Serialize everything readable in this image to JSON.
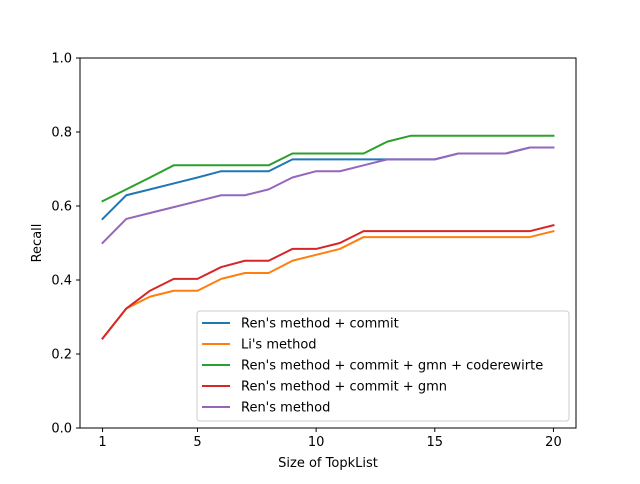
{
  "chart_data": {
    "type": "line",
    "title": "",
    "xlabel": "Size of TopkList",
    "ylabel": "Recall",
    "xlim": [
      0.05,
      20.95
    ],
    "ylim": [
      0.0,
      1.0
    ],
    "xticks": [
      1,
      5,
      10,
      15,
      20
    ],
    "yticks": [
      0.0,
      0.2,
      0.4,
      0.6,
      0.8,
      1.0
    ],
    "xtick_labels": [
      "1",
      "5",
      "10",
      "15",
      "20"
    ],
    "ytick_labels": [
      "0.0",
      "0.2",
      "0.4",
      "0.6",
      "0.8",
      "1.0"
    ],
    "grid": false,
    "legend_position": "lower-right",
    "x": [
      1,
      2,
      3,
      4,
      5,
      6,
      7,
      8,
      9,
      10,
      11,
      12,
      13,
      14,
      15,
      16,
      17,
      18,
      19,
      20
    ],
    "series": [
      {
        "name": "Ren's method + commit",
        "color": "#1f77b4",
        "values": [
          0.565,
          0.629,
          0.645,
          0.661,
          0.677,
          0.694,
          0.694,
          0.694,
          0.726,
          0.726,
          0.726,
          0.726,
          0.726,
          0.726,
          0.726,
          0.742,
          0.742,
          0.742,
          0.758,
          0.758
        ]
      },
      {
        "name": "Li's method",
        "color": "#ff7f0e",
        "values": [
          0.242,
          0.323,
          0.355,
          0.371,
          0.371,
          0.403,
          0.419,
          0.419,
          0.452,
          0.468,
          0.484,
          0.516,
          0.516,
          0.516,
          0.516,
          0.516,
          0.516,
          0.516,
          0.516,
          0.532
        ]
      },
      {
        "name": "Ren's method + commit + gmn + coderewirte",
        "color": "#2ca02c",
        "values": [
          0.613,
          0.645,
          0.677,
          0.71,
          0.71,
          0.71,
          0.71,
          0.71,
          0.742,
          0.742,
          0.742,
          0.742,
          0.774,
          0.79,
          0.79,
          0.79,
          0.79,
          0.79,
          0.79,
          0.79
        ]
      },
      {
        "name": "Ren's method + commit + gmn",
        "color": "#d62728",
        "values": [
          0.242,
          0.323,
          0.371,
          0.403,
          0.403,
          0.435,
          0.452,
          0.452,
          0.484,
          0.484,
          0.5,
          0.532,
          0.532,
          0.532,
          0.532,
          0.532,
          0.532,
          0.532,
          0.532,
          0.548
        ]
      },
      {
        "name": "Ren's method",
        "color": "#9467bd",
        "values": [
          0.5,
          0.565,
          0.581,
          0.597,
          0.613,
          0.629,
          0.629,
          0.645,
          0.677,
          0.694,
          0.694,
          0.71,
          0.726,
          0.726,
          0.726,
          0.742,
          0.742,
          0.742,
          0.758,
          0.758
        ]
      }
    ]
  }
}
